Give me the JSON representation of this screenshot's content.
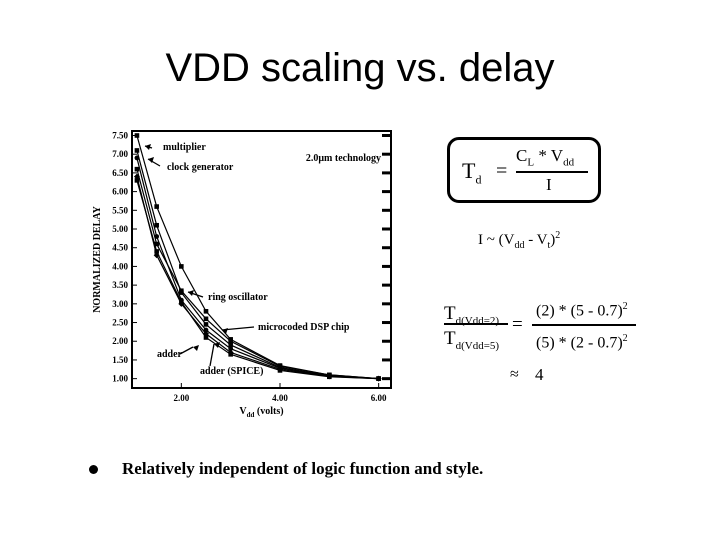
{
  "slide": {
    "title": "VDD scaling vs. delay",
    "bullet": "Relatively independent of logic function and style."
  },
  "formulas": {
    "td_symbol": "T",
    "td_sub": "d",
    "equals": "=",
    "numerator": "C",
    "num_sub1": "L",
    "num_mid": " * V",
    "num_sub2": "dd",
    "denominator": "I",
    "current_lhs": "I ~ (V",
    "current_sub1": "dd",
    "current_mid": " - V",
    "current_sub2": "t",
    "current_rhs": ")",
    "current_exp": "2",
    "ratio_top_T": "T",
    "ratio_top_sub": "d(Vdd=2)",
    "ratio_bot_T": "T",
    "ratio_bot_sub": "d(Vdd=5)",
    "ratio_num": "(2) * (5 - 0.7)",
    "ratio_den": "(5) * (2 - 0.7)",
    "ratio_exp": "2",
    "approx": "≈",
    "approx_value": "4"
  },
  "chart_data": {
    "type": "line",
    "xlabel": "V",
    "xlabel_sub": "dd",
    "xlabel_unit": " (volts)",
    "ylabel": "NORMALIZED DELAY",
    "xlim": [
      1.0,
      6.25
    ],
    "ylim": [
      0.75,
      7.62
    ],
    "xticks": [
      2.0,
      4.0,
      6.0
    ],
    "xtick_labels": [
      "2.00",
      "4.00",
      "6.00"
    ],
    "yticks": [
      1.0,
      1.5,
      2.0,
      2.5,
      3.0,
      3.5,
      4.0,
      4.5,
      5.0,
      5.5,
      6.0,
      6.5,
      7.0,
      7.5
    ],
    "ytick_labels": [
      "1.00",
      "1.50",
      "2.00",
      "2.50",
      "3.00",
      "3.50",
      "4.00",
      "4.50",
      "5.00",
      "5.50",
      "6.00",
      "6.50",
      "7.00",
      "7.50"
    ],
    "annotation": "2.0μm technology",
    "series": [
      {
        "name": "multiplier",
        "x": [
          1.1,
          1.5,
          2.0,
          2.5,
          3.0,
          4.0,
          5.0,
          6.0
        ],
        "y": [
          7.5,
          5.6,
          4.0,
          2.8,
          2.05,
          1.35,
          1.1,
          1.0
        ]
      },
      {
        "name": "clock generator",
        "x": [
          1.1,
          1.5,
          2.0,
          2.5,
          3.0,
          4.0,
          5.0,
          6.0
        ],
        "y": [
          7.1,
          5.1,
          3.3,
          2.45,
          1.9,
          1.3,
          1.08,
          1.0
        ]
      },
      {
        "name": "ring oscillator",
        "x": [
          1.1,
          1.5,
          2.0,
          2.5,
          3.0,
          4.0,
          5.0,
          6.0
        ],
        "y": [
          6.9,
          4.8,
          3.1,
          2.3,
          1.8,
          1.28,
          1.07,
          1.0
        ]
      },
      {
        "name": "microcoded DSP chip",
        "x": [
          1.1,
          1.5,
          2.0,
          2.5,
          3.0,
          4.0,
          5.0,
          6.0
        ],
        "y": [
          6.6,
          4.6,
          3.35,
          2.6,
          2.0,
          1.33,
          1.1,
          1.0
        ]
      },
      {
        "name": "adder",
        "x": [
          1.1,
          1.5,
          2.0,
          2.5,
          3.0,
          4.0,
          5.0,
          6.0
        ],
        "y": [
          6.4,
          4.3,
          3.0,
          2.2,
          1.7,
          1.25,
          1.06,
          1.0
        ]
      },
      {
        "name": "adder (SPICE)",
        "x": [
          1.1,
          1.5,
          2.0,
          2.5,
          3.0,
          4.0,
          5.0,
          6.0
        ],
        "y": [
          6.3,
          4.4,
          3.05,
          2.1,
          1.65,
          1.22,
          1.05,
          1.0
        ]
      }
    ],
    "labels": [
      "multiplier",
      "clock generator",
      "ring oscillator",
      "microcoded DSP chip",
      "adder",
      "adder (SPICE)"
    ]
  }
}
